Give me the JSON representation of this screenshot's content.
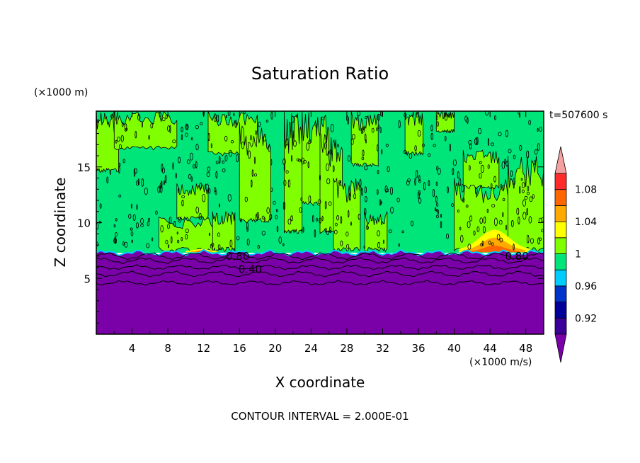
{
  "chart_data": {
    "type": "heatmap",
    "title": "Saturation Ratio",
    "xlabel": "X coordinate",
    "ylabel": "Z coordinate",
    "x_unit": "(×1000 m/s)",
    "y_unit": "(×1000 m)",
    "time_label": "t=507600 s",
    "footer": "CONTOUR INTERVAL = 2.000E-01",
    "xlim": [
      0,
      50
    ],
    "ylim": [
      0,
      20
    ],
    "x_ticks": [
      4,
      8,
      12,
      16,
      20,
      24,
      28,
      32,
      36,
      40,
      44,
      48
    ],
    "y_ticks": [
      5,
      10,
      15
    ],
    "contour_labels": [
      {
        "text": "0.80",
        "x": 15.8,
        "z": 7.0
      },
      {
        "text": "0.40",
        "x": 17.2,
        "z": 5.8
      },
      {
        "text": "0.80",
        "x": 47.0,
        "z": 7.0
      }
    ],
    "colorbar": {
      "tick_labels": [
        "1.08",
        "1.04",
        "1",
        "0.96",
        "0.92"
      ],
      "levels": [
        0.9,
        0.92,
        0.94,
        0.96,
        0.98,
        1.0,
        1.02,
        1.04,
        1.06,
        1.08,
        1.1
      ],
      "colors": [
        "#3a0099",
        "#000099",
        "#0033cc",
        "#00ccff",
        "#00e57a",
        "#80ff00",
        "#ffff00",
        "#ffaa00",
        "#ff6600",
        "#ff2a2a"
      ],
      "over_color": "#f4a0a0",
      "under_color": "#7a00a8"
    },
    "field": {
      "low_layer_color": "#7a00a8",
      "mid_color": "#00e57a",
      "upper_patch_color": "#80ff00",
      "inversion_height": 7.3
    }
  }
}
